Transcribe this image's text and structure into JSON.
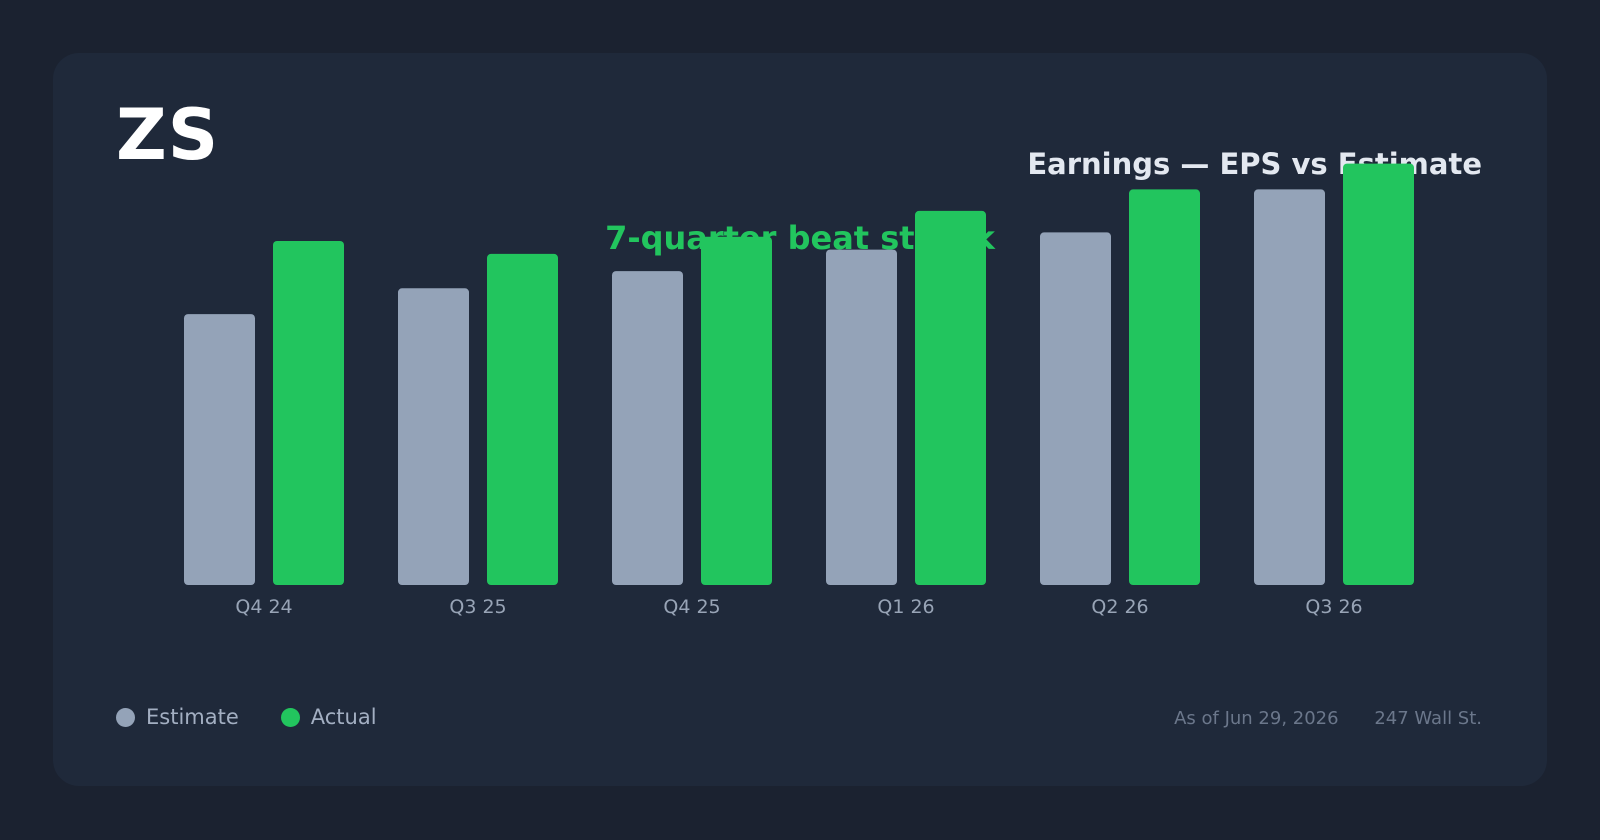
{
  "header": {
    "ticker": "ZS",
    "title": "Earnings — EPS vs Estimate",
    "subtitle": "7-quarter beat streak"
  },
  "colors": {
    "background": "#1b2230",
    "card": "#1f293a",
    "estimate": "#94a3b8",
    "actual": "#22c55e",
    "subtitle": "#22c55e"
  },
  "chart_data": {
    "type": "bar",
    "categories": [
      "Q4 24",
      "Q3 25",
      "Q4 25",
      "Q1 26",
      "Q2 26",
      "Q3 26"
    ],
    "series": [
      {
        "name": "Estimate",
        "values": [
          0.63,
          0.69,
          0.73,
          0.78,
          0.82,
          0.92
        ]
      },
      {
        "name": "Actual",
        "values": [
          0.8,
          0.77,
          0.81,
          0.87,
          0.92,
          0.98
        ]
      }
    ],
    "title": "Earnings — EPS vs Estimate",
    "subtitle": "7-quarter beat streak",
    "xlabel": "",
    "ylabel": "",
    "ylim": [
      0,
      1.0
    ],
    "grid": false,
    "legend": "bottom-left"
  },
  "legend": {
    "items": [
      {
        "label": "Estimate"
      },
      {
        "label": "Actual"
      }
    ]
  },
  "footer": {
    "as_of": "As of Jun 29, 2026",
    "source": "247 Wall St."
  }
}
